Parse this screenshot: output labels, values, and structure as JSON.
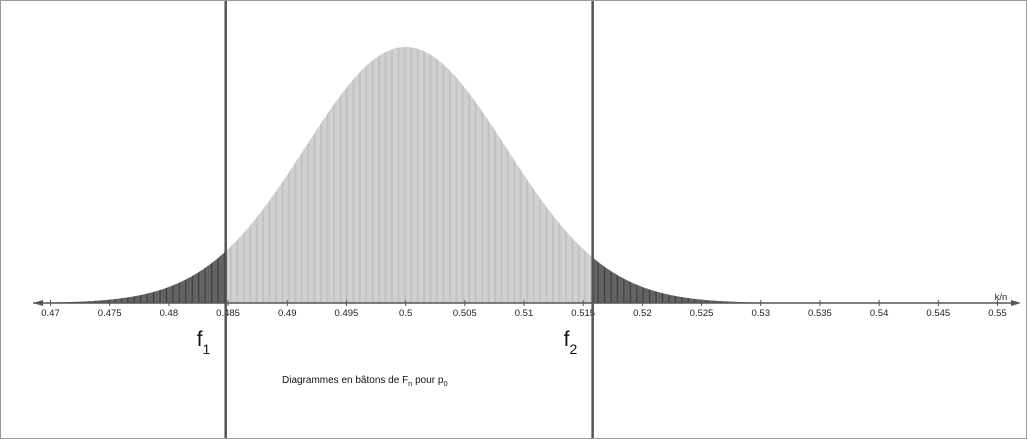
{
  "chart_data": {
    "type": "bar",
    "title": "",
    "xlabel": "k/n",
    "ylabel": "",
    "xlim": [
      0.4665,
      0.5525
    ],
    "ticks": [
      "0.47",
      "0.475",
      "0.48",
      "0.485",
      "0.49",
      "0.495",
      "0.5",
      "0.505",
      "0.51",
      "0.515",
      "0.52",
      "0.525",
      "0.53",
      "0.535",
      "0.54",
      "0.545",
      "0.55"
    ],
    "tick_values": [
      0.47,
      0.475,
      0.48,
      0.485,
      0.49,
      0.495,
      0.5,
      0.505,
      0.51,
      0.515,
      0.52,
      0.525,
      0.53,
      0.535,
      0.54,
      0.545,
      0.55
    ],
    "distribution": {
      "center": 0.5,
      "sd": 0.0085,
      "step": 0.0001,
      "relative_peak_height": 1.0
    },
    "interval": {
      "lower": 0.4848,
      "upper": 0.5158
    },
    "markers": [
      {
        "label": "f",
        "subscript": "1",
        "value": 0.4848
      },
      {
        "label": "f",
        "subscript": "2",
        "value": 0.5158
      }
    ],
    "caption": {
      "prefix": "Diagrammes en bâtons de F",
      "sub1": "n",
      "middle": " pour p",
      "sub2": "0"
    },
    "colors": {
      "bars_outside": "#3a3a3a",
      "bars_inside": "#b4b4b4",
      "axis": "#555555",
      "vertical_lines": "#555555"
    }
  }
}
